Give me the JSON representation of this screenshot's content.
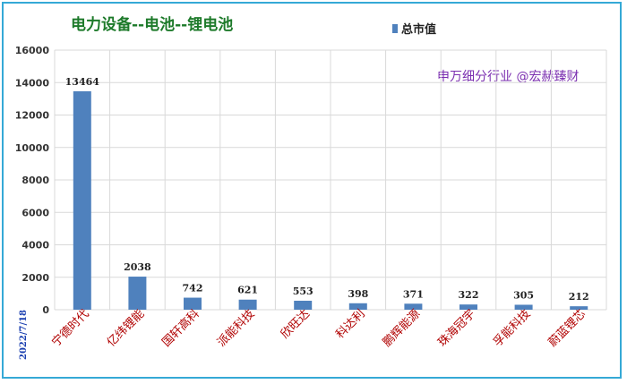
{
  "chart_data": {
    "type": "bar",
    "title": "电力设备--电池--锂电池",
    "watermark": "申万细分行业 @宏赫臻财",
    "date_label": "2022/7/18",
    "series": [
      {
        "name": "总市值",
        "values": [
          13464,
          2038,
          742,
          621,
          553,
          398,
          371,
          322,
          305,
          212
        ]
      }
    ],
    "categories": [
      "宁德时代",
      "亿纬锂能",
      "国轩高科",
      "派能科技",
      "欣旺达",
      "科达利",
      "鹏辉能源",
      "珠海冠宇",
      "孚能科技",
      "蔚蓝锂芯"
    ],
    "ylim": [
      0,
      16000
    ],
    "yticks": [
      0,
      2000,
      4000,
      6000,
      8000,
      10000,
      12000,
      14000,
      16000
    ],
    "grid": true,
    "legend_position": "top-center",
    "colors": {
      "bar": "#4f81bd",
      "title": "#1d7a2a",
      "watermark": "#7b2fb0",
      "xtick": "#b00000",
      "date": "#1a3fb0",
      "border": "#35a9d6"
    }
  }
}
